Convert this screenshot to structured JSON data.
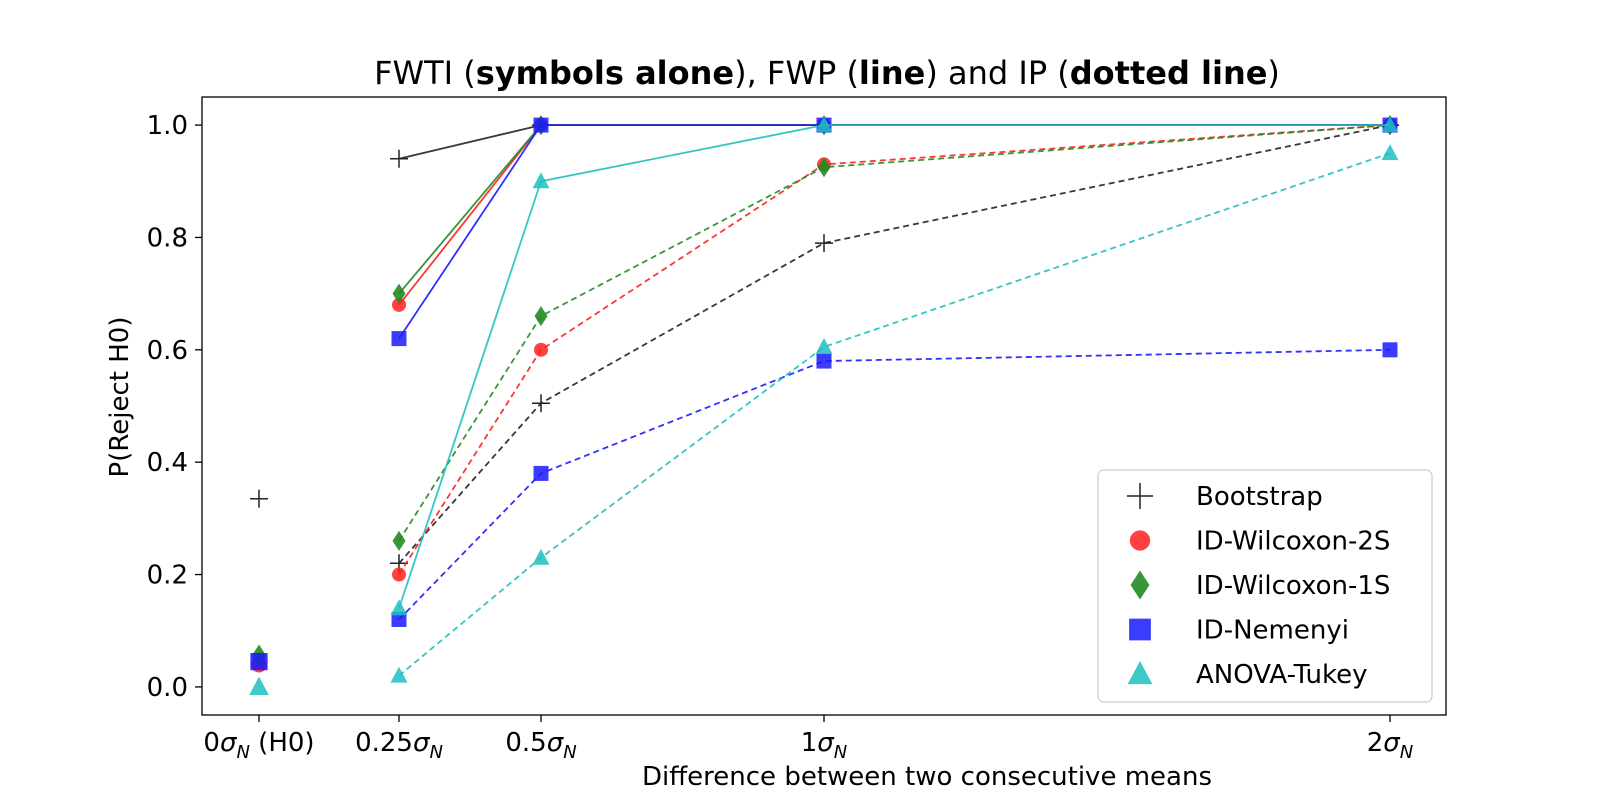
{
  "chart_data": {
    "type": "line",
    "title_parts": [
      {
        "text": "FWTI (",
        "bold": false
      },
      {
        "text": "symbols alone",
        "bold": true
      },
      {
        "text": "), FWP (",
        "bold": false
      },
      {
        "text": "line",
        "bold": true
      },
      {
        "text": ") and IP (",
        "bold": false
      },
      {
        "text": "dotted line",
        "bold": true
      },
      {
        "text": ")",
        "bold": false
      }
    ],
    "xlabel": "Difference between two consecutive means",
    "ylabel": "P(Reject H0)",
    "x": [
      0,
      0.25,
      0.5,
      1,
      2
    ],
    "x_tick_labels": [
      {
        "pre": "0",
        "sub": "N",
        "post": " (H0)"
      },
      {
        "pre": "0.25",
        "sub": "N",
        "post": ""
      },
      {
        "pre": "0.5",
        "sub": "N",
        "post": ""
      },
      {
        "pre": "1",
        "sub": "N",
        "post": ""
      },
      {
        "pre": "2",
        "sub": "N",
        "post": ""
      }
    ],
    "sigma_symbol": "σ",
    "y_ticks": [
      "0.0",
      "0.2",
      "0.4",
      "0.6",
      "0.8",
      "1.0"
    ],
    "xlim": [
      -0.1,
      2.1
    ],
    "ylim": [
      -0.05,
      1.05
    ],
    "grid": false,
    "legend_position": "lower-right",
    "series": [
      {
        "name": "Bootstrap",
        "color": "#222222",
        "marker": "plus",
        "fwti": 0.335,
        "fwp": [
          null,
          0.94,
          1.0,
          1.0,
          1.0
        ],
        "ip": [
          null,
          0.22,
          0.505,
          0.79,
          1.0
        ]
      },
      {
        "name": "ID-Wilcoxon-2S",
        "color": "#ff2020",
        "marker": "circle",
        "fwti": 0.04,
        "fwp": [
          null,
          0.68,
          1.0,
          1.0,
          1.0
        ],
        "ip": [
          null,
          0.2,
          0.6,
          0.93,
          1.0
        ]
      },
      {
        "name": "ID-Wilcoxon-1S",
        "color": "#228b22",
        "marker": "diamond",
        "fwti": 0.055,
        "fwp": [
          null,
          0.7,
          1.0,
          1.0,
          1.0
        ],
        "ip": [
          null,
          0.26,
          0.66,
          0.925,
          1.0
        ]
      },
      {
        "name": "ID-Nemenyi",
        "color": "#1a1aff",
        "marker": "square",
        "fwti": 0.045,
        "fwp": [
          null,
          0.62,
          1.0,
          1.0,
          1.0
        ],
        "ip": [
          null,
          0.12,
          0.38,
          0.58,
          0.6
        ]
      },
      {
        "name": "ANOVA-Tukey",
        "color": "#1fbfbf",
        "marker": "triangle",
        "fwti": 0.0,
        "fwp": [
          null,
          0.14,
          0.9,
          1.0,
          1.0
        ],
        "ip": [
          null,
          0.02,
          0.23,
          0.605,
          0.95
        ]
      }
    ]
  }
}
